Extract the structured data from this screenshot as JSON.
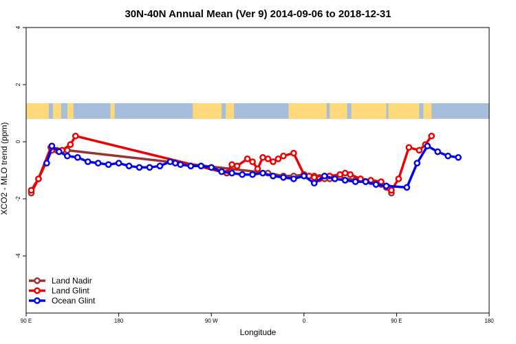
{
  "chart_data": {
    "type": "line",
    "title": "30N-40N Annual Mean (Ver 9)   2014-09-06 to 2018-12-31",
    "xlabel": "Longitude",
    "ylabel": "XCO2 - MLO trend (ppm)",
    "xlim": [
      -90,
      360
    ],
    "ylim": [
      -6,
      4
    ],
    "x_ticks": [
      {
        "value": -90,
        "label": "90 E"
      },
      {
        "value": 0,
        "label": "180"
      },
      {
        "value": 90,
        "label": "90 W"
      },
      {
        "value": 180,
        "label": "0"
      },
      {
        "value": 270,
        "label": "90 E"
      },
      {
        "value": 360,
        "label": "180"
      }
    ],
    "y_ticks": [
      {
        "value": 4,
        "label": "4"
      },
      {
        "value": 2,
        "label": "2"
      },
      {
        "value": 0,
        "label": "0"
      },
      {
        "value": -2,
        "label": "-2"
      },
      {
        "value": -4,
        "label": "-4"
      }
    ],
    "grid": false,
    "legend_position": "bottom-left",
    "map_strip": {
      "y_range": [
        0.8,
        1.35
      ],
      "ocean_color": "#a6bddb",
      "land_color": "#fdd97a"
    },
    "series": [
      {
        "name": "Land Nadir",
        "color": "#993333",
        "x": [
          -85,
          -78,
          -65,
          -55,
          -50,
          145,
          160,
          170,
          180,
          190,
          195,
          200,
          205,
          215,
          230,
          240,
          245,
          250,
          255,
          260,
          265
        ],
        "values": [
          -1.8,
          -1.3,
          -0.3,
          -0.3,
          -0.3,
          -1.1,
          -1.2,
          -1.2,
          -1.15,
          -1.2,
          -1.25,
          -1.3,
          -1.3,
          -1.25,
          -1.35,
          -1.4,
          -1.4,
          -1.45,
          -1.5,
          -1.6,
          -1.8
        ]
      },
      {
        "name": "Land Glint",
        "color": "#ee0000",
        "x": [
          -85,
          -78,
          -66,
          -60,
          -55,
          -47,
          -42,
          105,
          110,
          115,
          125,
          130,
          135,
          140,
          145,
          150,
          155,
          160,
          170,
          180,
          185,
          190,
          195,
          205,
          215,
          220,
          225,
          235,
          245,
          255,
          262,
          265,
          272,
          282,
          292,
          298,
          304
        ],
        "values": [
          -1.7,
          -1.3,
          -0.2,
          -0.3,
          -0.3,
          -0.1,
          0.2,
          -1.1,
          -0.8,
          -0.85,
          -0.6,
          -0.7,
          -0.95,
          -0.55,
          -0.6,
          -0.7,
          -0.6,
          -0.5,
          -0.4,
          -1.15,
          -1.2,
          -1.25,
          -1.3,
          -1.2,
          -1.15,
          -1.1,
          -1.15,
          -1.3,
          -1.35,
          -1.4,
          -1.6,
          -1.7,
          -1.3,
          -0.2,
          -0.3,
          -0.1,
          0.2
        ]
      },
      {
        "name": "Ocean Glint",
        "color": "#0000ee",
        "x": [
          -70,
          -65,
          -58,
          -50,
          -40,
          -30,
          -20,
          -10,
          0,
          10,
          20,
          30,
          40,
          50,
          55,
          60,
          70,
          80,
          90,
          100,
          110,
          120,
          130,
          140,
          150,
          160,
          170,
          180,
          190,
          200,
          210,
          220,
          230,
          240,
          250,
          260,
          280,
          290,
          300,
          310,
          320,
          330
        ],
        "values": [
          -0.75,
          -0.15,
          -0.35,
          -0.5,
          -0.55,
          -0.7,
          -0.75,
          -0.8,
          -0.75,
          -0.85,
          -0.9,
          -0.9,
          -0.85,
          -0.7,
          -0.75,
          -0.8,
          -0.85,
          -0.85,
          -0.9,
          -1.05,
          -1.1,
          -1.15,
          -1.15,
          -1.1,
          -1.2,
          -1.25,
          -1.3,
          -1.2,
          -1.45,
          -1.2,
          -1.3,
          -1.35,
          -1.4,
          -1.4,
          -1.5,
          -1.55,
          -1.6,
          -0.75,
          -0.15,
          -0.35,
          -0.5,
          -0.55
        ]
      }
    ]
  }
}
